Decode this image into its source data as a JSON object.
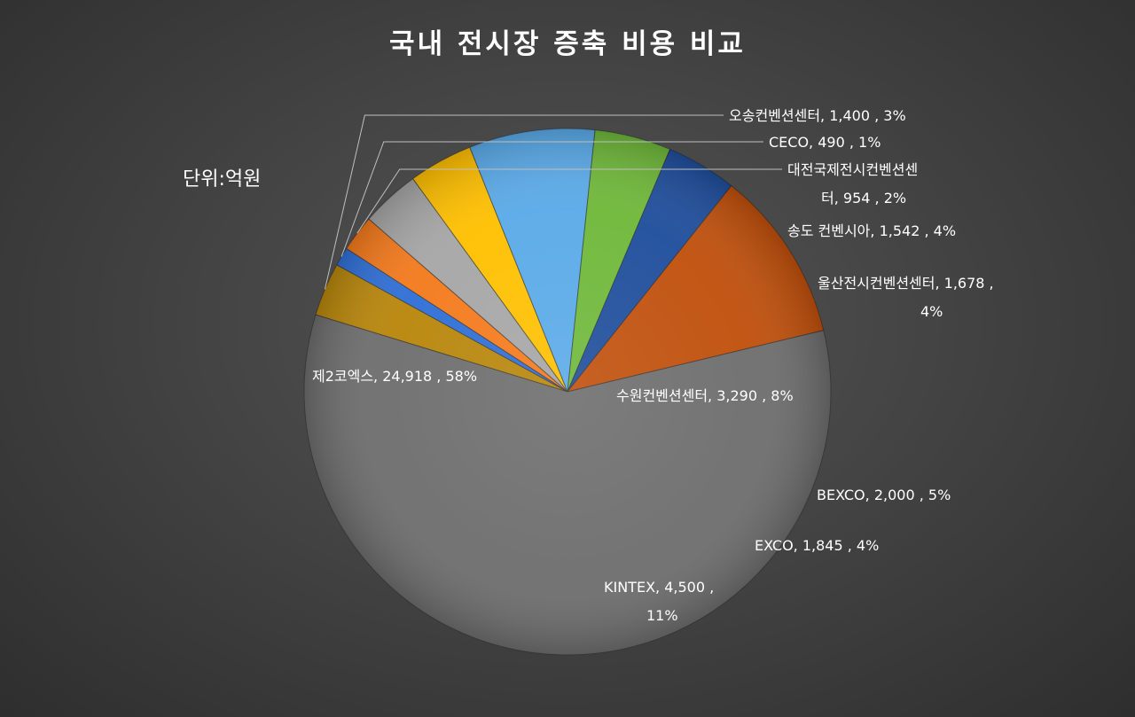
{
  "chart_data": {
    "type": "pie",
    "title": "국내 전시장 증축 비용 비교",
    "unit_note": "단위:억원",
    "slices": [
      {
        "name": "오송컨벤션센터",
        "value": 1400,
        "percent": "3%",
        "color": "#b8860b",
        "label_lines": [
          "오송컨벤션센터,  1,400 , 3%"
        ]
      },
      {
        "name": "CECO",
        "value": 490,
        "percent": "1%",
        "color": "#2f6fd6",
        "label_lines": [
          "CECO,  490 , 1%"
        ]
      },
      {
        "name": "대전국제전시컨벤션센터",
        "value": 954,
        "percent": "2%",
        "color": "#f47a1c",
        "label_lines": [
          "대전국제전시컨벤션센",
          "터,  954 , 2%"
        ]
      },
      {
        "name": "송도 컨벤시아",
        "value": 1542,
        "percent": "4%",
        "color": "#a6a6a6",
        "label_lines": [
          "송도 컨벤시아,  1,542 , 4%"
        ]
      },
      {
        "name": "울산전시컨벤션센터",
        "value": 1678,
        "percent": "4%",
        "color": "#ffc000",
        "label_lines": [
          "울산전시컨벤션센터,  1,678 ,",
          "4%"
        ]
      },
      {
        "name": "수원컨벤션센터",
        "value": 3290,
        "percent": "8%",
        "color": "#5aaae8",
        "label_lines": [
          "수원컨벤션센터,  3,290 , 8%"
        ]
      },
      {
        "name": "BEXCO",
        "value": 2000,
        "percent": "5%",
        "color": "#6fb83a",
        "label_lines": [
          "BEXCO,  2,000 , 5%"
        ]
      },
      {
        "name": "EXCO",
        "value": 1845,
        "percent": "4%",
        "color": "#1f4e9c",
        "label_lines": [
          "EXCO,  1,845 , 4%"
        ]
      },
      {
        "name": "KINTEX",
        "value": 4500,
        "percent": "11%",
        "color": "#c0500c",
        "label_lines": [
          "KINTEX,  4,500 ,",
          "11%"
        ]
      },
      {
        "name": "제2코엑스",
        "value": 24918,
        "percent": "58%",
        "color": "#6e6e6e",
        "label_lines": [
          "제2코엑스,  24,918 , 58%"
        ]
      }
    ]
  }
}
